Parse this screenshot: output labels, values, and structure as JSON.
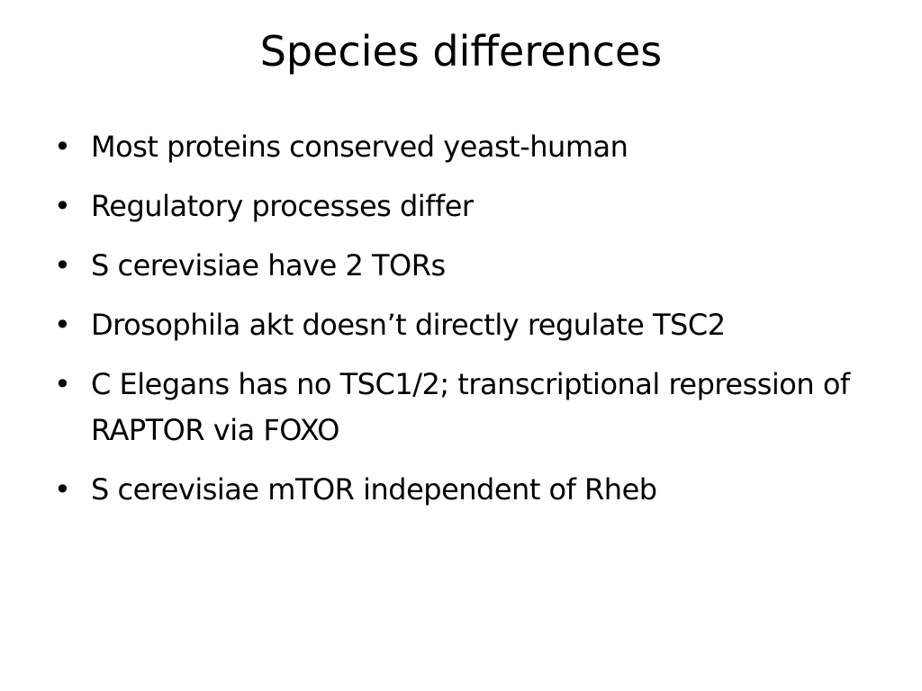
{
  "slide": {
    "title": "Species differences",
    "bullets": [
      "Most proteins conserved yeast-human",
      "Regulatory processes differ",
      "S cerevisiae have 2 TORs",
      "Drosophila akt doesn’t directly regulate TSC2",
      "C Elegans has no TSC1/2; transcriptional repression of RAPTOR via FOXO",
      "S cerevisiae mTOR independent of Rheb"
    ]
  }
}
